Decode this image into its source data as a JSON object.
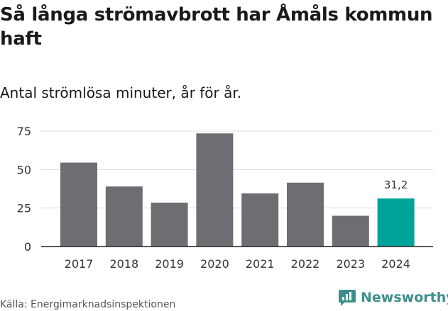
{
  "header": {
    "title": "Så långa strömavbrott har Åmåls kommun haft",
    "subtitle": "Antal strömlösa minuter, år för år."
  },
  "footer": {
    "source": "Källa: Energimarknadsinspektionen",
    "brand": "Newsworthy",
    "brand_icon": "newsworthy-logo-icon"
  },
  "colors": {
    "bar": "#6e6e72",
    "highlight": "#00a39a",
    "grid": "#dddddd",
    "brand": "#3d8f8a"
  },
  "chart_data": {
    "type": "bar",
    "title": "Så långa strömavbrott har Åmåls kommun haft",
    "subtitle": "Antal strömlösa minuter, år för år.",
    "xlabel": "",
    "ylabel": "",
    "categories": [
      "2017",
      "2018",
      "2019",
      "2020",
      "2021",
      "2022",
      "2023",
      "2024"
    ],
    "values": [
      54.5,
      39,
      28.5,
      73.5,
      34.5,
      41.5,
      20,
      31.2
    ],
    "ylim": [
      0,
      75
    ],
    "yticks": [
      0,
      25,
      50,
      75
    ],
    "grid": true,
    "highlight_index": 7,
    "data_labels": [
      {
        "index": 7,
        "text": "31,2"
      }
    ]
  }
}
